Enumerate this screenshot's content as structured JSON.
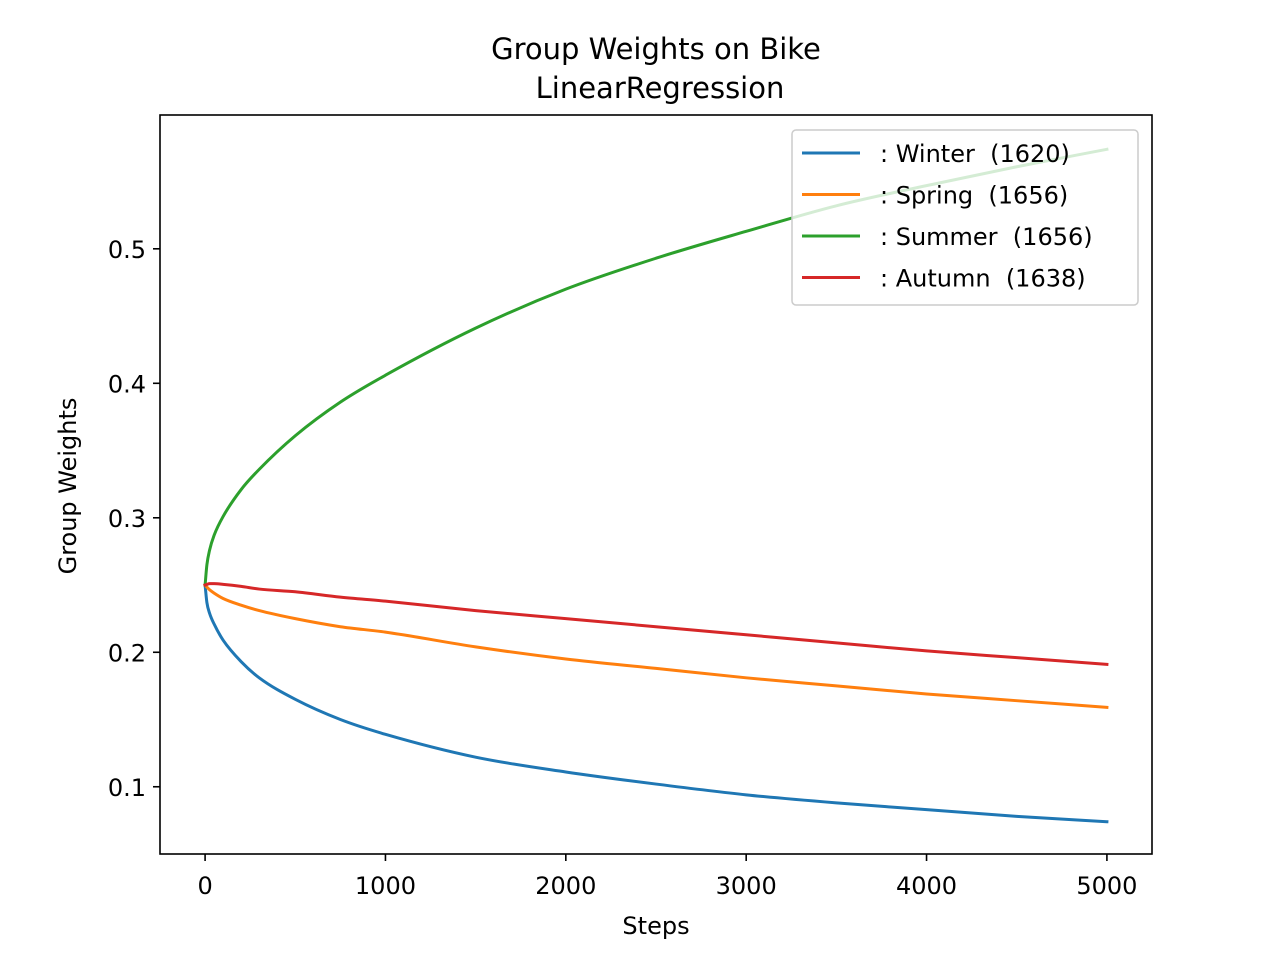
{
  "chart_data": {
    "type": "line",
    "title": "Group Weights on Bike",
    "subtitle": "LinearRegression",
    "xlabel": "Steps",
    "ylabel": "Group Weights",
    "xlim": [
      -250,
      5250
    ],
    "ylim": [
      0.05,
      0.5995
    ],
    "xticks": [
      0,
      1000,
      2000,
      3000,
      4000,
      5000
    ],
    "xtick_labels": [
      "0",
      "1000",
      "2000",
      "3000",
      "4000",
      "5000"
    ],
    "yticks": [
      0.1,
      0.2,
      0.3,
      0.4,
      0.5
    ],
    "ytick_labels": [
      "0.1",
      "0.2",
      "0.3",
      "0.4",
      "0.5"
    ],
    "grid": false,
    "legend": {
      "placement": "top-right",
      "entries": [
        ": Winter  (1620)",
        ": Spring  (1656)",
        ": Summer  (1656)",
        ": Autumn  (1638)"
      ]
    },
    "x": [
      0,
      10,
      25,
      50,
      100,
      200,
      300,
      500,
      750,
      1000,
      1500,
      2000,
      2500,
      3000,
      3500,
      4000,
      4500,
      5000
    ],
    "series": [
      {
        "name": ": Winter  (1620)",
        "color": "#1f77b4",
        "values": [
          0.25,
          0.237,
          0.229,
          0.221,
          0.209,
          0.193,
          0.181,
          0.165,
          0.15,
          0.139,
          0.122,
          0.111,
          0.102,
          0.094,
          0.088,
          0.083,
          0.078,
          0.074
        ]
      },
      {
        "name": ": Spring  (1656)",
        "color": "#ff7f0e",
        "values": [
          0.25,
          0.2485,
          0.2465,
          0.244,
          0.24,
          0.235,
          0.231,
          0.225,
          0.219,
          0.215,
          0.204,
          0.195,
          0.188,
          0.181,
          0.175,
          0.169,
          0.164,
          0.159
        ]
      },
      {
        "name": ": Summer  (1656)",
        "color": "#2ca02c",
        "values": [
          0.25,
          0.265,
          0.276,
          0.287,
          0.301,
          0.321,
          0.336,
          0.361,
          0.386,
          0.406,
          0.441,
          0.47,
          0.493,
          0.513,
          0.532,
          0.547,
          0.561,
          0.574
        ]
      },
      {
        "name": ": Autumn  (1638)",
        "color": "#d62728",
        "values": [
          0.25,
          0.2505,
          0.251,
          0.251,
          0.2505,
          0.249,
          0.247,
          0.245,
          0.241,
          0.238,
          0.231,
          0.225,
          0.219,
          0.213,
          0.207,
          0.201,
          0.196,
          0.191
        ]
      }
    ]
  }
}
